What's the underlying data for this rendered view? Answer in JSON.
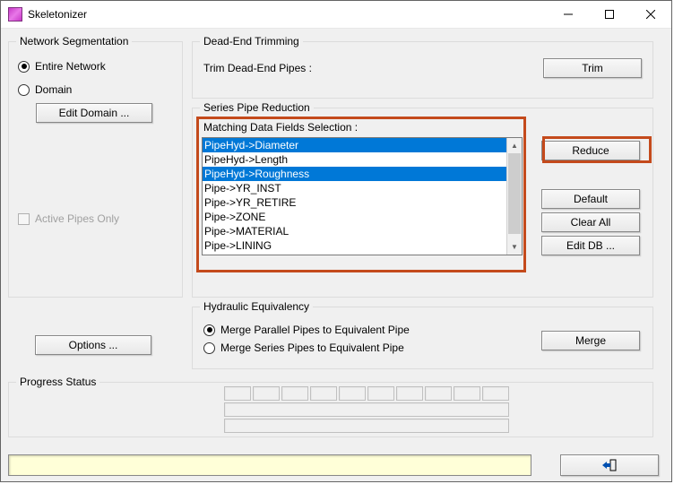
{
  "window": {
    "title": "Skeletonizer"
  },
  "networkSeg": {
    "title": "Network Segmentation",
    "entire": "Entire Network",
    "domain": "Domain",
    "editDomain": "Edit Domain ...",
    "activePipes": "Active Pipes Only",
    "selected": "entire"
  },
  "deadEnd": {
    "title": "Dead-End Trimming",
    "label": "Trim Dead-End Pipes :",
    "trim": "Trim"
  },
  "series": {
    "title": "Series Pipe Reduction",
    "matchLabel": "Matching Data Fields Selection :",
    "items": [
      {
        "label": "PipeHyd->Diameter",
        "selected": true
      },
      {
        "label": "PipeHyd->Length",
        "selected": false
      },
      {
        "label": "PipeHyd->Roughness",
        "selected": true
      },
      {
        "label": "Pipe->YR_INST",
        "selected": false
      },
      {
        "label": "Pipe->YR_RETIRE",
        "selected": false
      },
      {
        "label": "Pipe->ZONE",
        "selected": false
      },
      {
        "label": "Pipe->MATERIAL",
        "selected": false
      },
      {
        "label": "Pipe->LINING",
        "selected": false
      }
    ],
    "reduce": "Reduce",
    "defaultBtn": "Default",
    "clearAll": "Clear All",
    "editDb": "Edit DB ..."
  },
  "hydraulic": {
    "title": "Hydraulic Equivalency",
    "mergeParallel": "Merge Parallel Pipes to Equivalent Pipe",
    "mergeSeries": "Merge Series Pipes to Equivalent Pipe",
    "selected": "parallel",
    "merge": "Merge"
  },
  "options": "Options ...",
  "progress": {
    "title": "Progress Status"
  },
  "colors": {
    "highlight": "#c44a1c",
    "selectBg": "#0078d7",
    "statusBg": "#ffffd8"
  }
}
